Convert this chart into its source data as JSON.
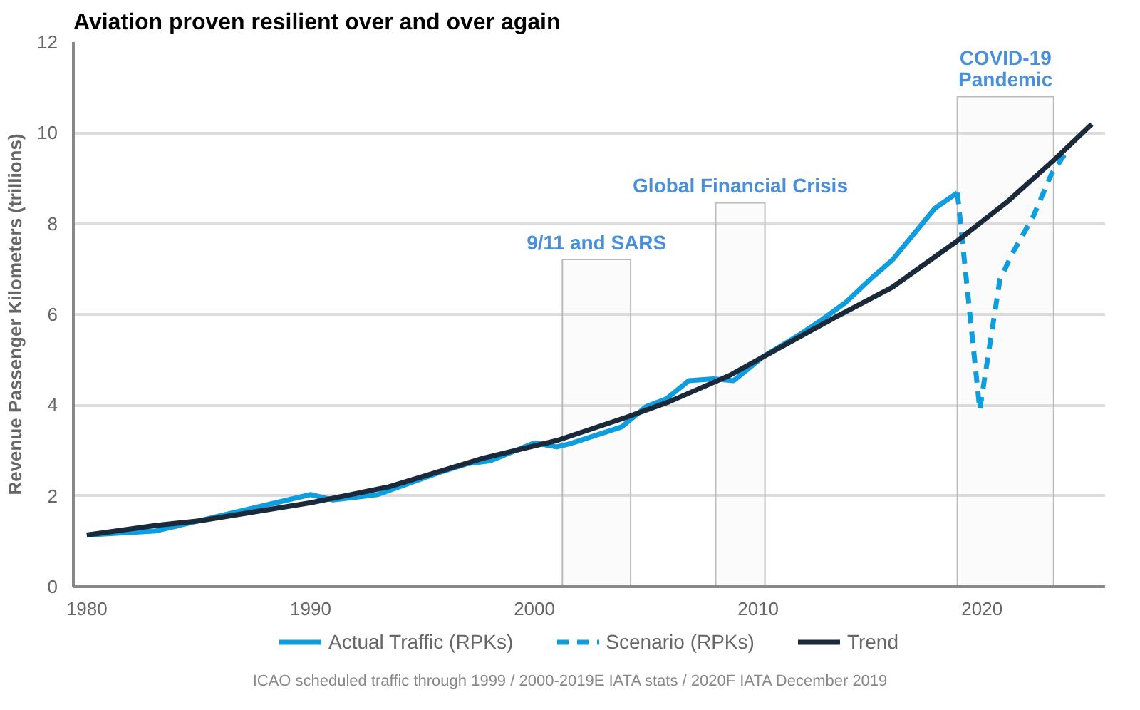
{
  "chart_data": {
    "type": "line",
    "title": "Aviation proven resilient over and over again",
    "ylabel": "Revenue Passenger Kilometers (trillions)",
    "xlim": [
      1979.4,
      2025.5
    ],
    "xticks": [
      1980,
      1990,
      2000,
      2010,
      2020
    ],
    "ylim": [
      0,
      12
    ],
    "yticks": [
      0,
      2,
      4,
      6,
      8,
      10,
      12
    ],
    "grid": "y",
    "legend": "bottom",
    "line_style": "solid",
    "series": [
      {
        "name": "Actual Traffic (RPKs)",
        "color": "#0e9ee0",
        "x": [
          1980,
          1983.1,
          1985,
          1987.5,
          1990,
          1991,
          1993,
          1995.9,
          1997,
          1998,
          2000,
          2001,
          2001.6,
          2003.9,
          2005,
          2005.9,
          2006.9,
          2008,
          2008.9,
          2010.2,
          2011.9,
          2012.9,
          2013.9,
          2015,
          2016,
          2017.9,
          2018.9
        ],
        "values": [
          1.14,
          1.23,
          1.45,
          1.74,
          2.03,
          1.91,
          2.03,
          2.54,
          2.71,
          2.77,
          3.17,
          3.08,
          3.15,
          3.52,
          3.97,
          4.14,
          4.54,
          4.58,
          4.54,
          5.06,
          5.57,
          5.9,
          6.26,
          6.77,
          7.2,
          8.34,
          8.68
        ]
      },
      {
        "name": "Scenario (RPKs)",
        "color": "#0e9ee0",
        "line_style": "dashed",
        "x": [
          2018.9,
          2019.9,
          2020.8,
          2021.4,
          2022.3,
          2023.1,
          2023.8
        ],
        "values": [
          8.68,
          3.9,
          6.77,
          7.38,
          8.17,
          9.09,
          9.6
        ]
      },
      {
        "name": "Trend",
        "color": "#1b2a3a",
        "x": [
          1980,
          1983.1,
          1985,
          1990,
          1993.5,
          1997.7,
          2001,
          2004.1,
          2006,
          2008.7,
          2010.8,
          2013.5,
          2016,
          2018.9,
          2021.2,
          2023.3,
          2024.9
        ],
        "values": [
          1.14,
          1.35,
          1.45,
          1.85,
          2.2,
          2.83,
          3.22,
          3.73,
          4.07,
          4.65,
          5.22,
          5.95,
          6.6,
          7.62,
          8.51,
          9.44,
          10.19
        ]
      }
    ],
    "bands": [
      {
        "axis": "x",
        "from": 2001.25,
        "to": 2004.3,
        "color": "#bbbbbb",
        "label": "9/11 and SARS"
      },
      {
        "axis": "x",
        "from": 2008.1,
        "to": 2010.3,
        "color": "#bbbbbb",
        "label": "Global Financial Crisis"
      },
      {
        "axis": "x",
        "from": 2018.9,
        "to": 2023.2,
        "color": "#bbbbbb",
        "label": "COVID-19\nPandemic"
      }
    ],
    "annotations": [
      "ICAO scheduled traffic through 1999 / 2000-2019E IATA stats / 2020F IATA December 2019"
    ]
  }
}
